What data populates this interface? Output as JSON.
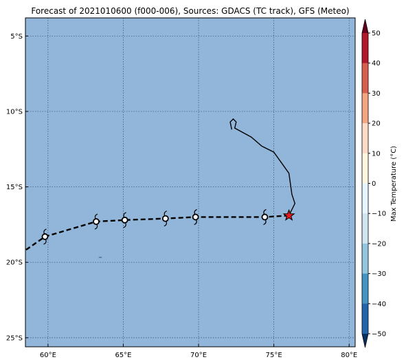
{
  "title": "Forecast of 2021010600 (f000-006), Sources: GDACS (TC track), GFS (Meteo)",
  "map": {
    "lon_range": [
      58.5,
      80.4
    ],
    "lat_range": [
      -25.6,
      -3.8
    ],
    "x_ticks": [
      {
        "value": 60,
        "label": "60°E"
      },
      {
        "value": 65,
        "label": "65°E"
      },
      {
        "value": 70,
        "label": "70°E"
      },
      {
        "value": 75,
        "label": "75°E"
      },
      {
        "value": 80,
        "label": "80°E"
      }
    ],
    "y_ticks": [
      {
        "value": -5,
        "label": "5°S"
      },
      {
        "value": -10,
        "label": "10°S"
      },
      {
        "value": -15,
        "label": "15°S"
      },
      {
        "value": -20,
        "label": "20°S"
      },
      {
        "value": -25,
        "label": "25°S"
      }
    ],
    "grid": true,
    "ocean_color": "#92b6da",
    "observed_track": [
      [
        72.2,
        -11.2
      ],
      [
        72.1,
        -10.7
      ],
      [
        72.3,
        -10.5
      ],
      [
        72.5,
        -10.7
      ],
      [
        72.4,
        -11.1
      ],
      [
        73.5,
        -11.7
      ],
      [
        74.2,
        -12.3
      ],
      [
        75.0,
        -12.7
      ],
      [
        76.0,
        -14.1
      ],
      [
        76.2,
        -15.5
      ],
      [
        76.4,
        -16.1
      ],
      [
        76.0,
        -16.9
      ]
    ],
    "forecast_track": [
      [
        76.0,
        -16.9
      ],
      [
        74.4,
        -17.0
      ],
      [
        69.8,
        -17.0
      ],
      [
        67.8,
        -17.1
      ],
      [
        65.1,
        -17.2
      ],
      [
        63.2,
        -17.3
      ],
      [
        59.8,
        -18.3
      ],
      [
        58.5,
        -19.2
      ]
    ],
    "forecast_points": [
      [
        74.4,
        -17.0
      ],
      [
        69.8,
        -17.0
      ],
      [
        67.8,
        -17.1
      ],
      [
        65.1,
        -17.2
      ],
      [
        63.2,
        -17.3
      ],
      [
        59.8,
        -18.3
      ]
    ],
    "current_position": [
      76.0,
      -16.9
    ],
    "current_marker_color": "#e41a1c"
  },
  "colorbar": {
    "label": "Max Temperature (°C)",
    "ticks": [
      "50",
      "40",
      "30",
      "20",
      "10",
      "0",
      "−10",
      "−20",
      "−30",
      "−40",
      "−50"
    ],
    "range": [
      -50,
      50
    ],
    "colors_top_to_bottom": [
      "#67001f",
      "#b2182b",
      "#d6604d",
      "#f4a582",
      "#fddbc7",
      "#fff7e0",
      "#e6f5ff",
      "#d1e5f0",
      "#92c5de",
      "#4393c3",
      "#2166ac",
      "#053061"
    ]
  }
}
